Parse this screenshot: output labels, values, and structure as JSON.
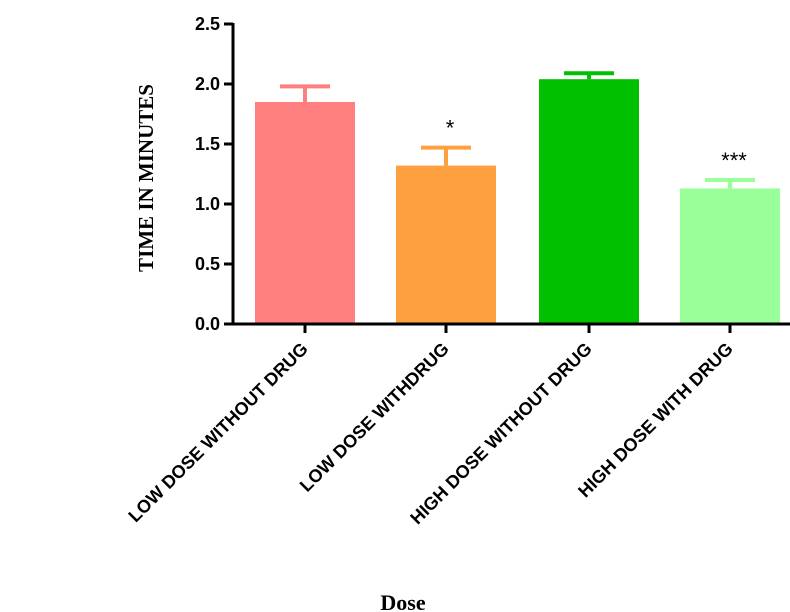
{
  "chart_data": {
    "type": "bar",
    "categories": [
      "LOW DOSE WITHOUT DRUG",
      "LOW DOSE WITHDRUG",
      "HIGH  DOSE WITHOUT DRUG",
      "HIGH DOSE WITH DRUG"
    ],
    "values": [
      1.85,
      1.32,
      2.04,
      1.13
    ],
    "errors": [
      0.13,
      0.15,
      0.05,
      0.07
    ],
    "colors": [
      "#ff7f7f",
      "#ffa040",
      "#00c000",
      "#99ff99"
    ],
    "annotations": [
      "",
      "*",
      "",
      "***"
    ],
    "ylim": [
      0,
      2.5
    ],
    "yticks": [
      "0.0",
      "0.5",
      "1.0",
      "1.5",
      "2.0",
      "2.5"
    ],
    "xlabel": "Dose",
    "ylabel": "TIME IN MINUTES",
    "grid": false
  }
}
